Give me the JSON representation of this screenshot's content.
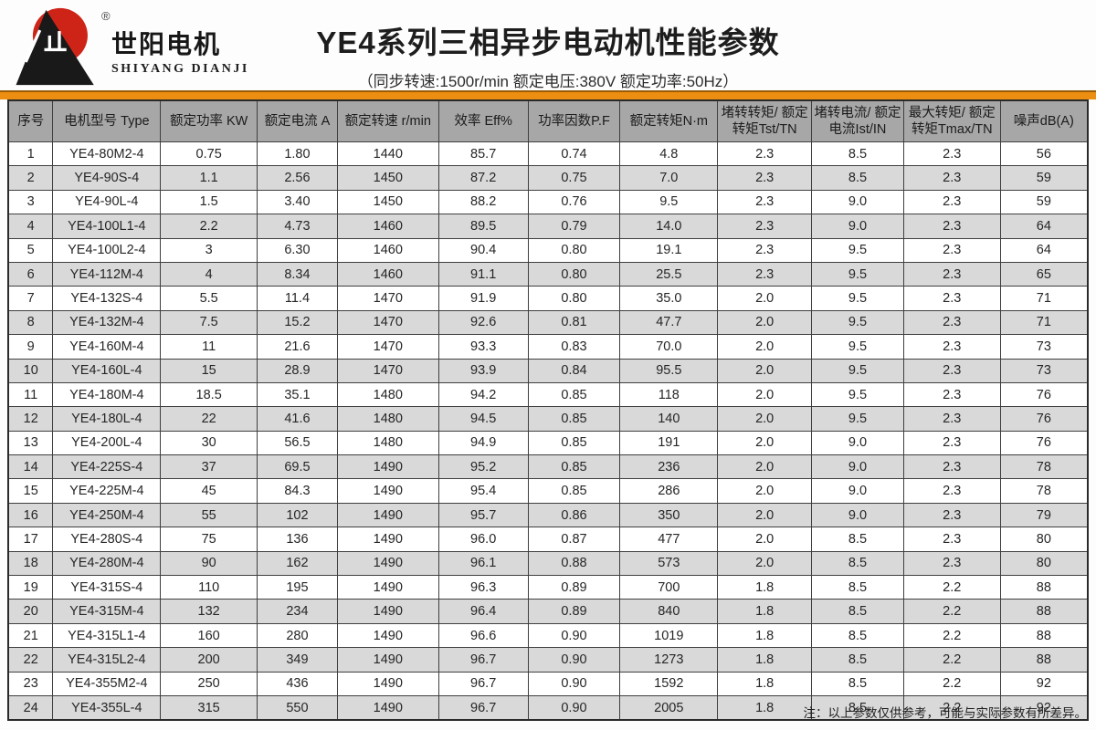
{
  "logo": {
    "registered_mark": "®",
    "name_cn": "世阳电机",
    "name_en": "SHIYANG DIANJI",
    "colors": {
      "sun": "#ce2418",
      "mountain": "#191919"
    }
  },
  "header": {
    "title": "YE4系列三相异步电动机性能参数",
    "subtitle": "（同步转速:1500r/min   额定电压:380V   额定功率:50Hz）"
  },
  "accent_bar_color": "#ec8e12",
  "table": {
    "columns": [
      "序号",
      "电机型号 Type",
      "额定功率 KW",
      "额定电流 A",
      "额定转速 r/min",
      "效率 Eff%",
      "功率因数P.F",
      "额定转矩N·m",
      "堵转转矩/ 额定转矩Tst/TN",
      "堵转电流/ 额定电流Ist/IN",
      "最大转矩/ 额定转矩Tmax/TN",
      "噪声dB(A)"
    ],
    "rows": [
      [
        "1",
        "YE4-80M2-4",
        "0.75",
        "1.80",
        "1440",
        "85.7",
        "0.74",
        "4.8",
        "2.3",
        "8.5",
        "2.3",
        "56"
      ],
      [
        "2",
        "YE4-90S-4",
        "1.1",
        "2.56",
        "1450",
        "87.2",
        "0.75",
        "7.0",
        "2.3",
        "8.5",
        "2.3",
        "59"
      ],
      [
        "3",
        "YE4-90L-4",
        "1.5",
        "3.40",
        "1450",
        "88.2",
        "0.76",
        "9.5",
        "2.3",
        "9.0",
        "2.3",
        "59"
      ],
      [
        "4",
        "YE4-100L1-4",
        "2.2",
        "4.73",
        "1460",
        "89.5",
        "0.79",
        "14.0",
        "2.3",
        "9.0",
        "2.3",
        "64"
      ],
      [
        "5",
        "YE4-100L2-4",
        "3",
        "6.30",
        "1460",
        "90.4",
        "0.80",
        "19.1",
        "2.3",
        "9.5",
        "2.3",
        "64"
      ],
      [
        "6",
        "YE4-112M-4",
        "4",
        "8.34",
        "1460",
        "91.1",
        "0.80",
        "25.5",
        "2.3",
        "9.5",
        "2.3",
        "65"
      ],
      [
        "7",
        "YE4-132S-4",
        "5.5",
        "11.4",
        "1470",
        "91.9",
        "0.80",
        "35.0",
        "2.0",
        "9.5",
        "2.3",
        "71"
      ],
      [
        "8",
        "YE4-132M-4",
        "7.5",
        "15.2",
        "1470",
        "92.6",
        "0.81",
        "47.7",
        "2.0",
        "9.5",
        "2.3",
        "71"
      ],
      [
        "9",
        "YE4-160M-4",
        "11",
        "21.6",
        "1470",
        "93.3",
        "0.83",
        "70.0",
        "2.0",
        "9.5",
        "2.3",
        "73"
      ],
      [
        "10",
        "YE4-160L-4",
        "15",
        "28.9",
        "1470",
        "93.9",
        "0.84",
        "95.5",
        "2.0",
        "9.5",
        "2.3",
        "73"
      ],
      [
        "11",
        "YE4-180M-4",
        "18.5",
        "35.1",
        "1480",
        "94.2",
        "0.85",
        "118",
        "2.0",
        "9.5",
        "2.3",
        "76"
      ],
      [
        "12",
        "YE4-180L-4",
        "22",
        "41.6",
        "1480",
        "94.5",
        "0.85",
        "140",
        "2.0",
        "9.5",
        "2.3",
        "76"
      ],
      [
        "13",
        "YE4-200L-4",
        "30",
        "56.5",
        "1480",
        "94.9",
        "0.85",
        "191",
        "2.0",
        "9.0",
        "2.3",
        "76"
      ],
      [
        "14",
        "YE4-225S-4",
        "37",
        "69.5",
        "1490",
        "95.2",
        "0.85",
        "236",
        "2.0",
        "9.0",
        "2.3",
        "78"
      ],
      [
        "15",
        "YE4-225M-4",
        "45",
        "84.3",
        "1490",
        "95.4",
        "0.85",
        "286",
        "2.0",
        "9.0",
        "2.3",
        "78"
      ],
      [
        "16",
        "YE4-250M-4",
        "55",
        "102",
        "1490",
        "95.7",
        "0.86",
        "350",
        "2.0",
        "9.0",
        "2.3",
        "79"
      ],
      [
        "17",
        "YE4-280S-4",
        "75",
        "136",
        "1490",
        "96.0",
        "0.87",
        "477",
        "2.0",
        "8.5",
        "2.3",
        "80"
      ],
      [
        "18",
        "YE4-280M-4",
        "90",
        "162",
        "1490",
        "96.1",
        "0.88",
        "573",
        "2.0",
        "8.5",
        "2.3",
        "80"
      ],
      [
        "19",
        "YE4-315S-4",
        "110",
        "195",
        "1490",
        "96.3",
        "0.89",
        "700",
        "1.8",
        "8.5",
        "2.2",
        "88"
      ],
      [
        "20",
        "YE4-315M-4",
        "132",
        "234",
        "1490",
        "96.4",
        "0.89",
        "840",
        "1.8",
        "8.5",
        "2.2",
        "88"
      ],
      [
        "21",
        "YE4-315L1-4",
        "160",
        "280",
        "1490",
        "96.6",
        "0.90",
        "1019",
        "1.8",
        "8.5",
        "2.2",
        "88"
      ],
      [
        "22",
        "YE4-315L2-4",
        "200",
        "349",
        "1490",
        "96.7",
        "0.90",
        "1273",
        "1.8",
        "8.5",
        "2.2",
        "88"
      ],
      [
        "23",
        "YE4-355M2-4",
        "250",
        "436",
        "1490",
        "96.7",
        "0.90",
        "1592",
        "1.8",
        "8.5",
        "2.2",
        "92"
      ],
      [
        "24",
        "YE4-355L-4",
        "315",
        "550",
        "1490",
        "96.7",
        "0.90",
        "2005",
        "1.8",
        "8.5",
        "2.2",
        "92"
      ]
    ]
  },
  "footer": {
    "note": "注：以上参数仅供参考，可能与实际参数有所差异。"
  }
}
